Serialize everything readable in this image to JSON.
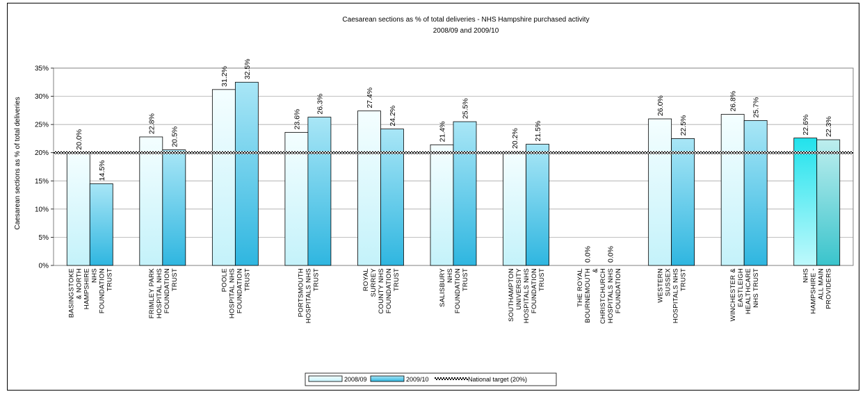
{
  "chart_data": {
    "type": "bar",
    "title": "Caesarean sections as % of total deliveries - NHS Hampshire purchased activity",
    "subtitle": "2008/09 and 2009/10",
    "xlabel": "",
    "ylabel": "Caesarean sections as % of total deliveries",
    "ylim": [
      0,
      35
    ],
    "yticks": [
      "0%",
      "5%",
      "10%",
      "15%",
      "20%",
      "25%",
      "30%",
      "35%"
    ],
    "grid": true,
    "legend_position": "bottom-center",
    "categories": [
      [
        "BASINGSTOKE",
        "& NORTH",
        "HAMPSHIRE",
        "NHS",
        "FOUNDATION",
        "TRUST"
      ],
      [
        "FRIMLEY PARK",
        "HOSPITAL NHS",
        "FOUNDATION",
        "TRUST"
      ],
      [
        "POOLE",
        "HOSPITAL NHS",
        "FOUNDATION",
        "TRUST"
      ],
      [
        "PORTSMOUTH",
        "HOSPITALS NHS",
        "TRUST"
      ],
      [
        "ROYAL",
        "SURREY",
        "COUNTY NHS",
        "FOUNDATION",
        "TRUST"
      ],
      [
        "SALISBURY",
        "NHS",
        "FOUNDATION",
        "TRUST"
      ],
      [
        "SOUTHAMPTON",
        "UNIVERSITY",
        "HOSPITALS NHS",
        "FOUNDATION",
        "TRUST"
      ],
      [
        "THE ROYAL",
        "BOURNEMOUTH",
        "&",
        "CHRISTCHURCH",
        "HOSPITALS NHS",
        "FOUNDATION"
      ],
      [
        "WESTERN",
        "SUSSEX",
        "HOSPITALS NHS",
        "TRUST"
      ],
      [
        "WINCHESTER &",
        "EASTLEIGH",
        "HEALTHCARE",
        "NHS TRUST"
      ],
      [
        "NHS",
        "HAMPSHIRE -",
        "ALL MAIN",
        "PROVIDERS"
      ]
    ],
    "series": [
      {
        "name": "2008/09",
        "values": [
          20.0,
          22.8,
          31.2,
          23.6,
          27.4,
          21.4,
          20.2,
          0.0,
          26.0,
          26.8,
          22.6
        ],
        "labels": [
          "20.0%",
          "22.8%",
          "31.2%",
          "23.6%",
          "27.4%",
          "21.4%",
          "20.2%",
          "0.0%",
          "26.0%",
          "26.8%",
          "22.6%"
        ]
      },
      {
        "name": "2009/10",
        "values": [
          14.5,
          20.5,
          32.5,
          26.3,
          24.2,
          25.5,
          21.5,
          0.0,
          22.5,
          25.7,
          22.3
        ],
        "labels": [
          "14.5%",
          "20.5%",
          "32.5%",
          "26.3%",
          "24.2%",
          "25.5%",
          "21.5%",
          "0.0%",
          "22.5%",
          "25.7%",
          "22.3%"
        ]
      }
    ],
    "target": {
      "name": "National target (20%)",
      "value": 20
    },
    "colors": {
      "s1_light": "#f4feff",
      "s1_dark": "#c4f2fa",
      "s2_light": "#a9e6f6",
      "s2_dark": "#2fb6e0",
      "total1_light": "#bef9fc",
      "total1_dark": "#22e2ec",
      "total2_light": "#bdeeee",
      "total2_dark": "#3ac4cc",
      "grid": "#9a9a9a",
      "plot_border": "#808080"
    }
  }
}
